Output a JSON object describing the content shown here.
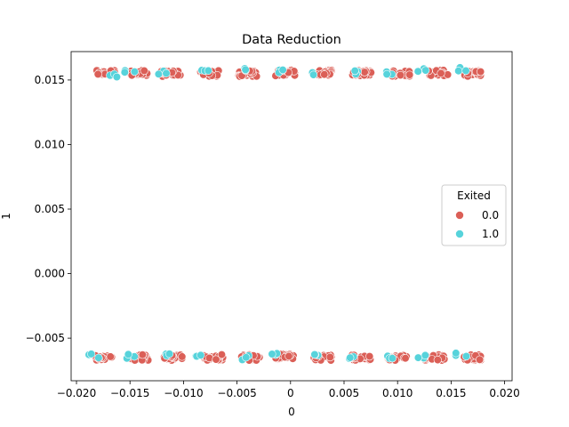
{
  "chart_data": {
    "type": "scatter",
    "title": "Data Reduction",
    "xlabel": "0",
    "ylabel": "1",
    "xlim": [
      -0.0205,
      0.0207
    ],
    "ylim": [
      -0.0083,
      0.0172
    ],
    "x_ticks": [
      -0.02,
      -0.015,
      -0.01,
      -0.005,
      0.0,
      0.005,
      0.01,
      0.015,
      0.02
    ],
    "x_tick_labels": [
      "−0.020",
      "−0.015",
      "−0.010",
      "−0.005",
      "0",
      "0.005",
      "0.010",
      "0.015",
      "0.020"
    ],
    "y_ticks": [
      -0.005,
      0.0,
      0.005,
      0.01,
      0.015
    ],
    "y_tick_labels": [
      "−0.005",
      "0.000",
      "0.005",
      "0.010",
      "0.015"
    ],
    "grid": false,
    "legend": {
      "title": "Exited",
      "placement": "center-right",
      "entries": [
        {
          "label": "0.0",
          "color": "#db5f57"
        },
        {
          "label": "1.0",
          "color": "#57d3db"
        }
      ]
    },
    "series": [
      {
        "name": "0.0",
        "color": "#db5f57",
        "clusters": [
          [
            -0.0172,
            0.01555
          ],
          [
            -0.0142,
            0.01555
          ],
          [
            -0.0112,
            0.0155
          ],
          [
            -0.0076,
            0.0155
          ],
          [
            -0.004,
            0.0155
          ],
          [
            -0.0005,
            0.01555
          ],
          [
            0.003,
            0.01555
          ],
          [
            0.0067,
            0.01555
          ],
          [
            0.0103,
            0.0155
          ],
          [
            0.0138,
            0.01555
          ],
          [
            0.0171,
            0.0155
          ],
          [
            -0.0175,
            -0.0065
          ],
          [
            -0.0142,
            -0.0065
          ],
          [
            -0.011,
            -0.0065
          ],
          [
            -0.0072,
            -0.0065
          ],
          [
            -0.0038,
            -0.0065
          ],
          [
            -0.0005,
            -0.00645
          ],
          [
            0.003,
            -0.0065
          ],
          [
            0.0066,
            -0.0065
          ],
          [
            0.01,
            -0.0065
          ],
          [
            0.0135,
            -0.0065
          ],
          [
            0.017,
            -0.0065
          ]
        ]
      },
      {
        "name": "1.0",
        "color": "#57d3db",
        "clusters": [
          [
            -0.0168,
            0.0154
          ],
          [
            -0.015,
            0.0156
          ],
          [
            -0.0118,
            0.0156
          ],
          [
            -0.0082,
            0.0156
          ],
          [
            -0.0045,
            0.0158
          ],
          [
            -0.0012,
            0.0157
          ],
          [
            0.0025,
            0.01545
          ],
          [
            0.0058,
            0.0156
          ],
          [
            0.0096,
            0.01555
          ],
          [
            0.0125,
            0.0157
          ],
          [
            0.0162,
            0.0158
          ],
          [
            -0.0185,
            -0.0064
          ],
          [
            -0.015,
            -0.0064
          ],
          [
            -0.0118,
            -0.0063
          ],
          [
            -0.0082,
            -0.0064
          ],
          [
            -0.0045,
            -0.0065
          ],
          [
            -0.0015,
            -0.0063
          ],
          [
            0.002,
            -0.0064
          ],
          [
            0.006,
            -0.0066
          ],
          [
            0.0093,
            -0.0064
          ],
          [
            0.0125,
            -0.0064
          ],
          [
            0.016,
            -0.0063
          ]
        ]
      }
    ]
  }
}
